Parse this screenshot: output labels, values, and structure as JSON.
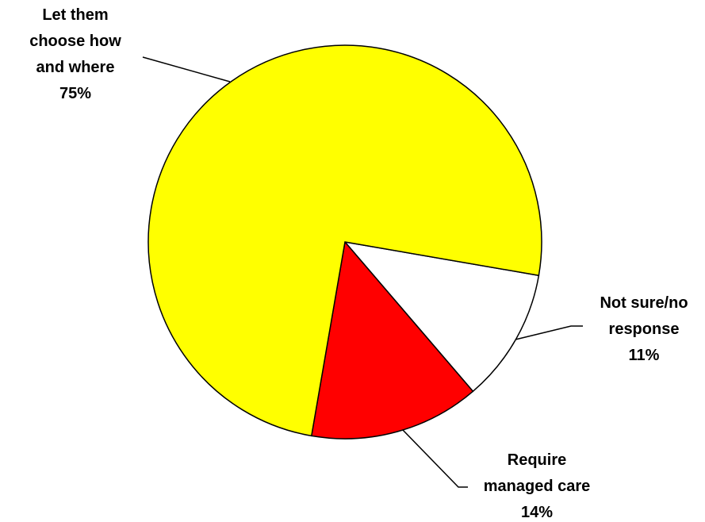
{
  "chart_data": {
    "type": "pie",
    "categories": [
      "Not sure/no response",
      "Require managed care",
      "Let them choose how and where"
    ],
    "values": [
      11,
      14,
      75
    ],
    "value_labels": [
      "11%",
      "14%",
      "75%"
    ],
    "colors": [
      "#ffffff",
      "#ff0000",
      "#ffff00"
    ]
  }
}
